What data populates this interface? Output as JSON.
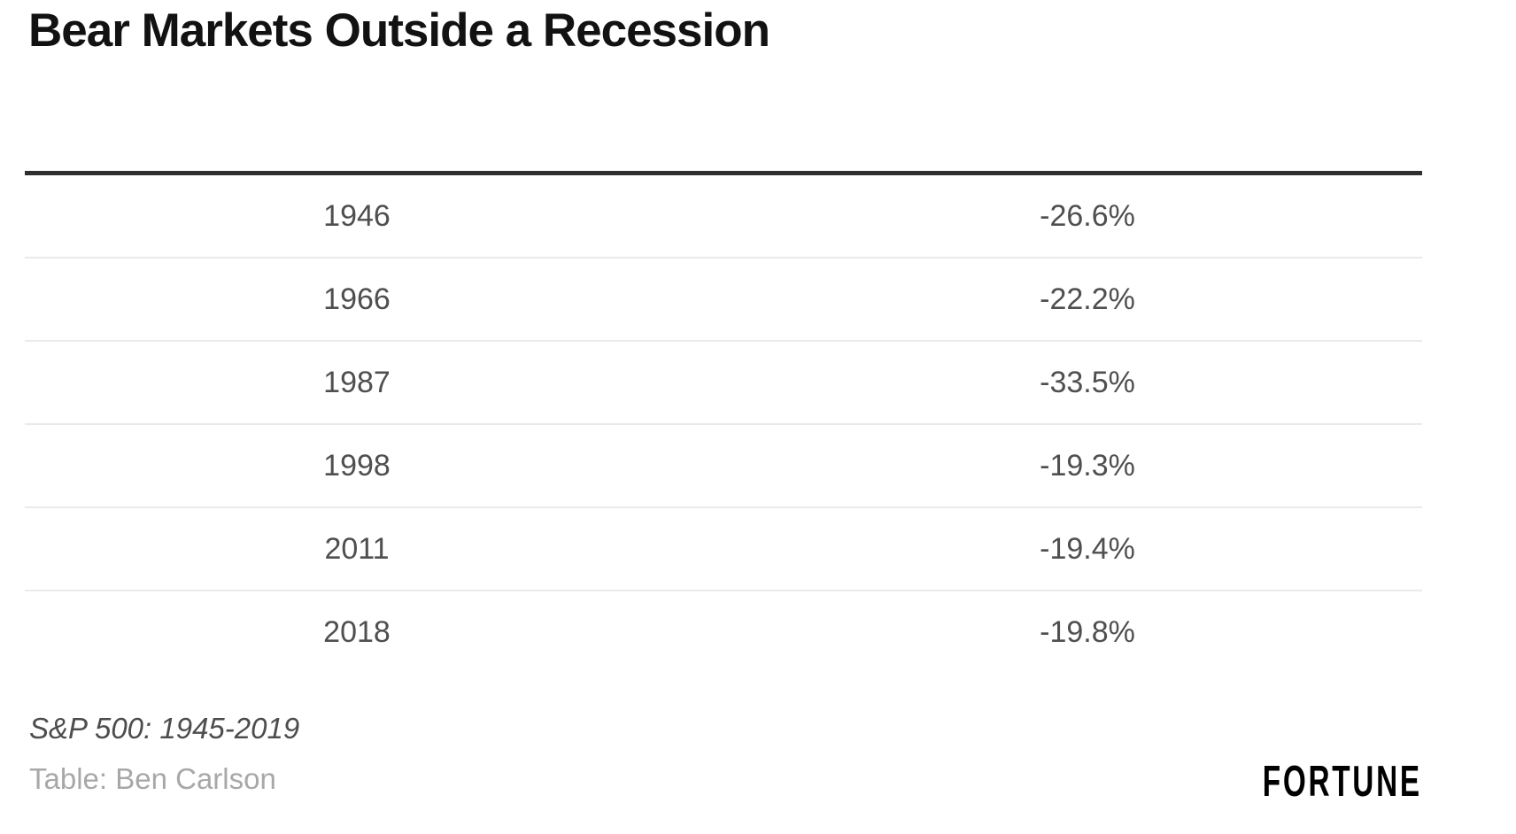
{
  "title": "Bear Markets Outside a Recession",
  "chart_data": {
    "type": "table",
    "title": "Bear Markets Outside a Recession",
    "rows": [
      [
        "1946",
        "-26.6%"
      ],
      [
        "1966",
        "-22.2%"
      ],
      [
        "1987",
        "-33.5%"
      ],
      [
        "1998",
        "-19.3%"
      ],
      [
        "2011",
        "-19.4%"
      ],
      [
        "2018",
        "-19.8%"
      ]
    ],
    "values_numeric_pct": [
      -26.6,
      -22.2,
      -33.5,
      -19.3,
      -19.4,
      -19.8
    ],
    "layout": {
      "grid": "horizontal row separators only",
      "header_row": "none visible",
      "top_border_color": "#2f2f2f",
      "separator_color": "#eaeaea",
      "text_color": "#4f4f4f"
    }
  },
  "footer": {
    "source_note": "S&P 500: 1945-2019",
    "credit": "Table: Ben Carlson",
    "brand": "FORTUNE"
  },
  "colors": {
    "background": "#ffffff",
    "title": "#121212",
    "cell_text": "#4f4f4f",
    "source_note": "#4d4d4d",
    "credit": "#a8a8a8",
    "brand": "#000000"
  }
}
